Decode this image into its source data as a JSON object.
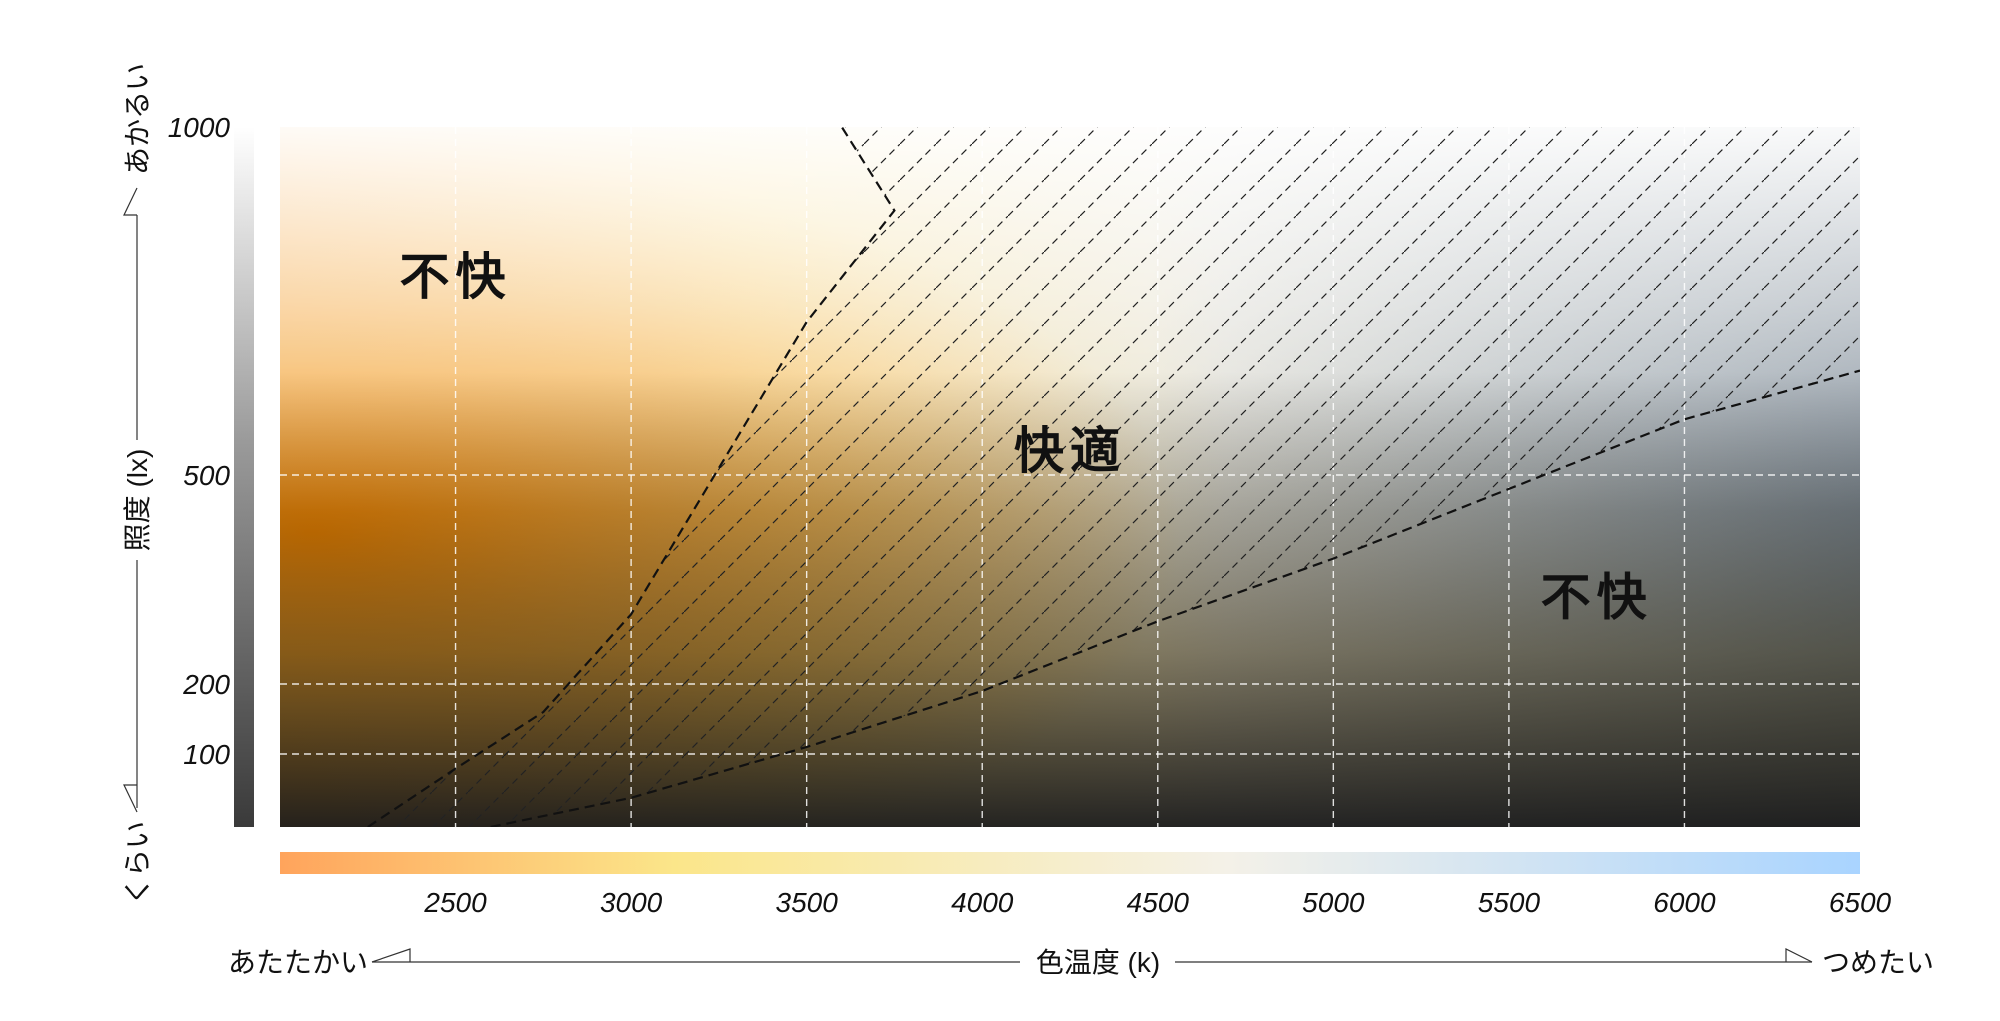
{
  "chart_data": {
    "type": "area",
    "title": "",
    "xlabel": "色温度 (k)",
    "ylabel": "照度 (lx)",
    "xlim": [
      2000,
      6500
    ],
    "x_ticks": [
      2500,
      3000,
      3500,
      4000,
      4500,
      5000,
      5500,
      6000,
      6500
    ],
    "y_ticks": [
      100,
      200,
      500,
      1000
    ],
    "y_tick_values_displayed": [
      "100",
      "200",
      "500",
      "1000"
    ],
    "x_scale_ends": {
      "left": "あたたかい",
      "right": "つめたい"
    },
    "y_scale_ends": {
      "top": "あかるい",
      "bottom": "くらい"
    },
    "grid": true,
    "colors": {
      "warm": "#ff8c00",
      "cool": "#a9d4ff",
      "warm_bar": "#ffa45c",
      "yellow_bar": "#fbe68a",
      "cool_bar": "#a9d4ff"
    },
    "boundaries": [
      {
        "name": "upper",
        "points": [
          [
            2250,
            0
          ],
          [
            2500,
            80
          ],
          [
            2750,
            160
          ],
          [
            3000,
            300
          ],
          [
            3250,
            510
          ],
          [
            3500,
            720
          ],
          [
            3750,
            880
          ],
          [
            3600,
            1000
          ]
        ]
      },
      {
        "name": "lower",
        "points": [
          [
            2600,
            0
          ],
          [
            3000,
            40
          ],
          [
            3500,
            110
          ],
          [
            4000,
            190
          ],
          [
            4500,
            290
          ],
          [
            5000,
            380
          ],
          [
            5500,
            480
          ],
          [
            6000,
            580
          ],
          [
            6500,
            650
          ]
        ]
      }
    ],
    "regions": [
      {
        "label": "不快",
        "x": 2500,
        "y": 760
      },
      {
        "label": "快適",
        "x": 4250,
        "y": 510
      },
      {
        "label": "不快",
        "x": 5750,
        "y": 300
      }
    ]
  }
}
